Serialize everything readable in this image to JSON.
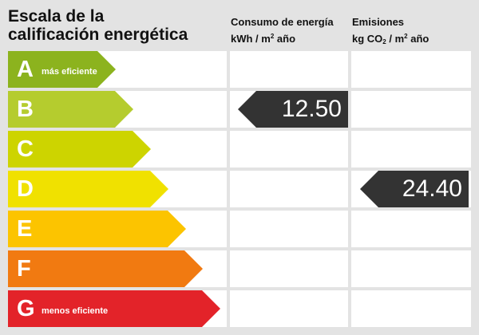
{
  "title_line1": "Escala de la",
  "title_line2": "calificación energética",
  "col_consumo": {
    "line1": "Consumo de energía",
    "unit_a": "kWh / m",
    "sup": "2",
    "unit_b": " año"
  },
  "col_emisiones": {
    "line1": "Emisiones",
    "unit_a": "kg CO",
    "sub": "2",
    "unit_b": " / m",
    "sup": "2",
    "unit_c": " año"
  },
  "classes": [
    {
      "letter": "A",
      "note": "más eficiente",
      "color": "#8cb31e"
    },
    {
      "letter": "B",
      "note": "",
      "color": "#b5cc2e"
    },
    {
      "letter": "C",
      "note": "",
      "color": "#cdd400"
    },
    {
      "letter": "D",
      "note": "",
      "color": "#f0e100"
    },
    {
      "letter": "E",
      "note": "",
      "color": "#fcc400"
    },
    {
      "letter": "F",
      "note": "",
      "color": "#f17a11"
    },
    {
      "letter": "G",
      "note": "menos eficiente",
      "color": "#e32329"
    }
  ],
  "consumo": {
    "class": "B",
    "value": "12.50"
  },
  "emisiones": {
    "class": "D",
    "value": "24.40"
  },
  "indicator_color": "#333333"
}
